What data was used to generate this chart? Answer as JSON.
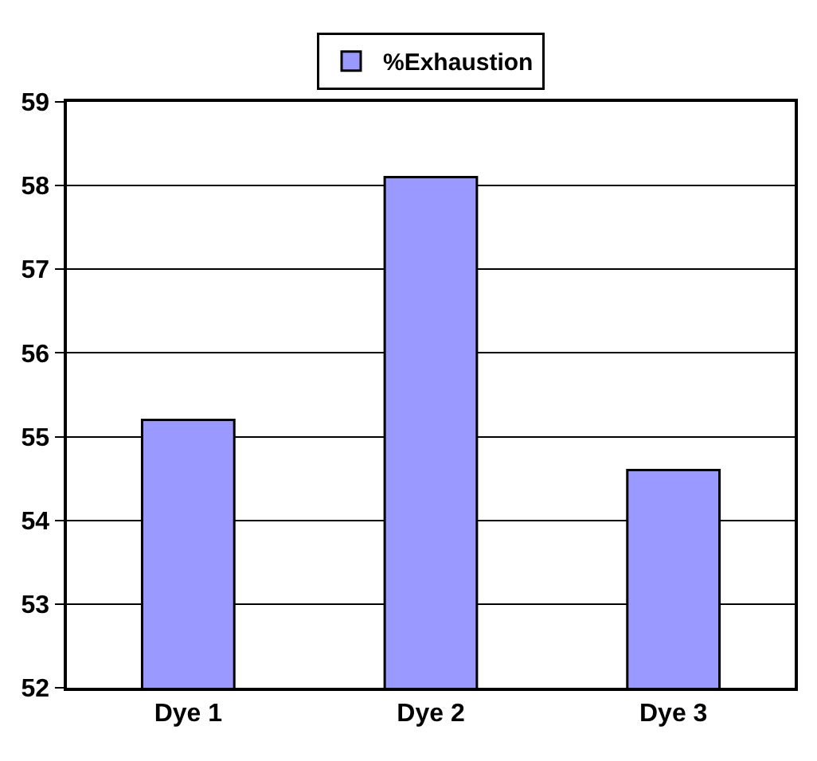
{
  "chart_data": {
    "type": "bar",
    "categories": [
      "Dye 1",
      "Dye 2",
      "Dye 3"
    ],
    "series": [
      {
        "name": "%Exhaustion",
        "color": "#9999ff",
        "values": [
          55.2,
          58.1,
          54.6
        ]
      }
    ],
    "ylim": [
      52,
      59
    ],
    "yticks": [
      52,
      53,
      54,
      55,
      56,
      57,
      58,
      59
    ],
    "grid": "y",
    "legend": "top"
  }
}
